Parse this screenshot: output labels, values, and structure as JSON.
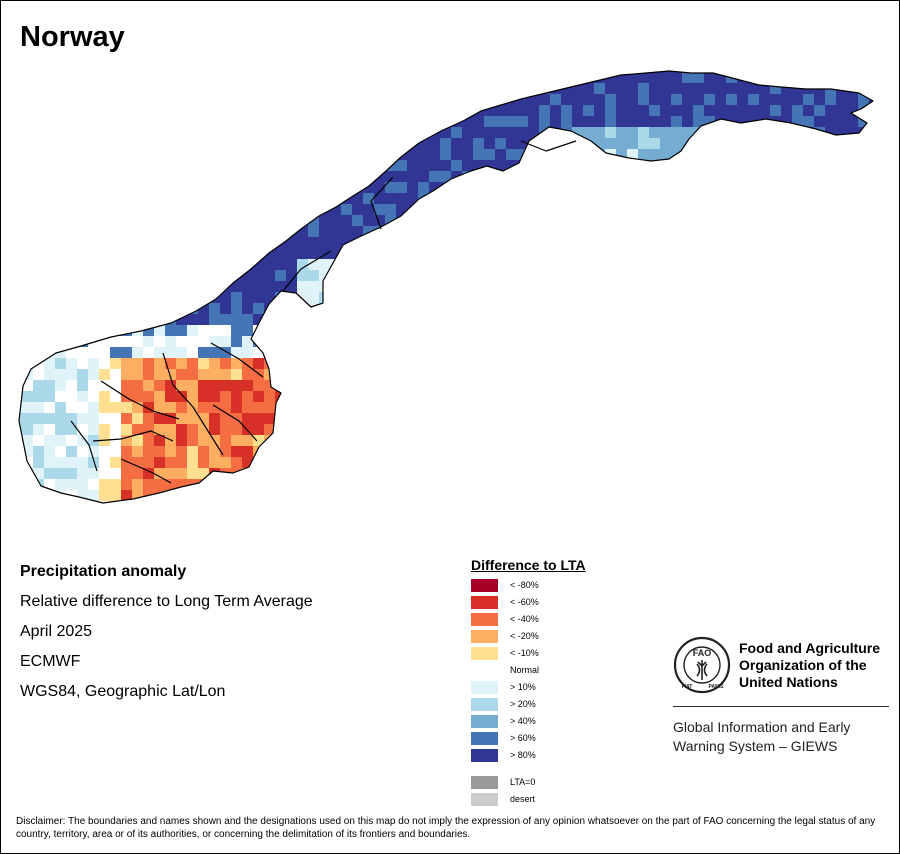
{
  "title": "Norway",
  "info": {
    "heading": "Precipitation anomaly",
    "description": "Relative difference to Long Term Average",
    "period": "April 2025",
    "source": "ECMWF",
    "projection": "WGS84, Geographic Lat/Lon"
  },
  "legend": {
    "title": "Difference to LTA",
    "items": [
      {
        "label": "< -80%",
        "color": "#a50026"
      },
      {
        "label": "< -60%",
        "color": "#d73027"
      },
      {
        "label": "< -40%",
        "color": "#f46d43"
      },
      {
        "label": "< -20%",
        "color": "#fdae61"
      },
      {
        "label": "< -10%",
        "color": "#fee090"
      },
      {
        "label": "Normal",
        "color": "#ffffff"
      },
      {
        "label": "> 10%",
        "color": "#e0f3f8"
      },
      {
        "label": "> 20%",
        "color": "#abd9e9"
      },
      {
        "label": "> 40%",
        "color": "#74add1"
      },
      {
        "label": "> 60%",
        "color": "#4575b4"
      },
      {
        "label": "> 80%",
        "color": "#313695"
      }
    ],
    "extra": [
      {
        "label": "LTA=0",
        "color": "#999999"
      },
      {
        "label": "desert",
        "color": "#cccccc"
      }
    ]
  },
  "org": {
    "logo_text": "FAO",
    "logo_ring_left": "FIAT",
    "logo_ring_right": "PANIS",
    "name_line1": "Food and Agriculture",
    "name_line2": "Organization of the",
    "name_line3": "United Nations",
    "system_line1": "Global Information and Early",
    "system_line2": "Warning System – GIEWS"
  },
  "disclaimer": "Disclaimer: The boundaries and names shown and the designations used on this map do not imply the expression of any opinion whatsoever on the part of FAO concerning the legal status of any country, territory, area or of its authorities, or concerning the delimitation of its frontiers and boundaries."
}
